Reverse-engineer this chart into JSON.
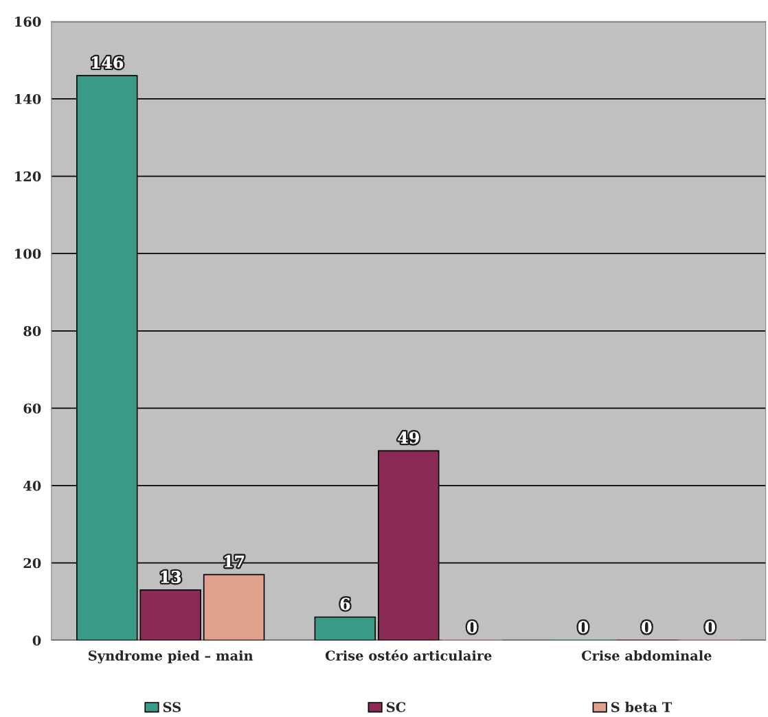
{
  "chart_data": {
    "type": "bar",
    "categories": [
      "Syndrome pied – main",
      "Crise ostéo articulaire",
      "Crise abdominale"
    ],
    "series": [
      {
        "name": "SS",
        "color": "#3a9a88",
        "values": [
          146,
          6,
          0
        ]
      },
      {
        "name": "SC",
        "color": "#8b2a55",
        "values": [
          13,
          49,
          0
        ]
      },
      {
        "name": "S beta T",
        "color": "#e0a08c",
        "values": [
          17,
          0,
          0
        ]
      }
    ],
    "ylim": [
      0,
      160
    ],
    "yticks": [
      0,
      20,
      40,
      60,
      80,
      100,
      120,
      140,
      160
    ],
    "grid": "y",
    "legend": "bottom",
    "data_labels": true
  }
}
